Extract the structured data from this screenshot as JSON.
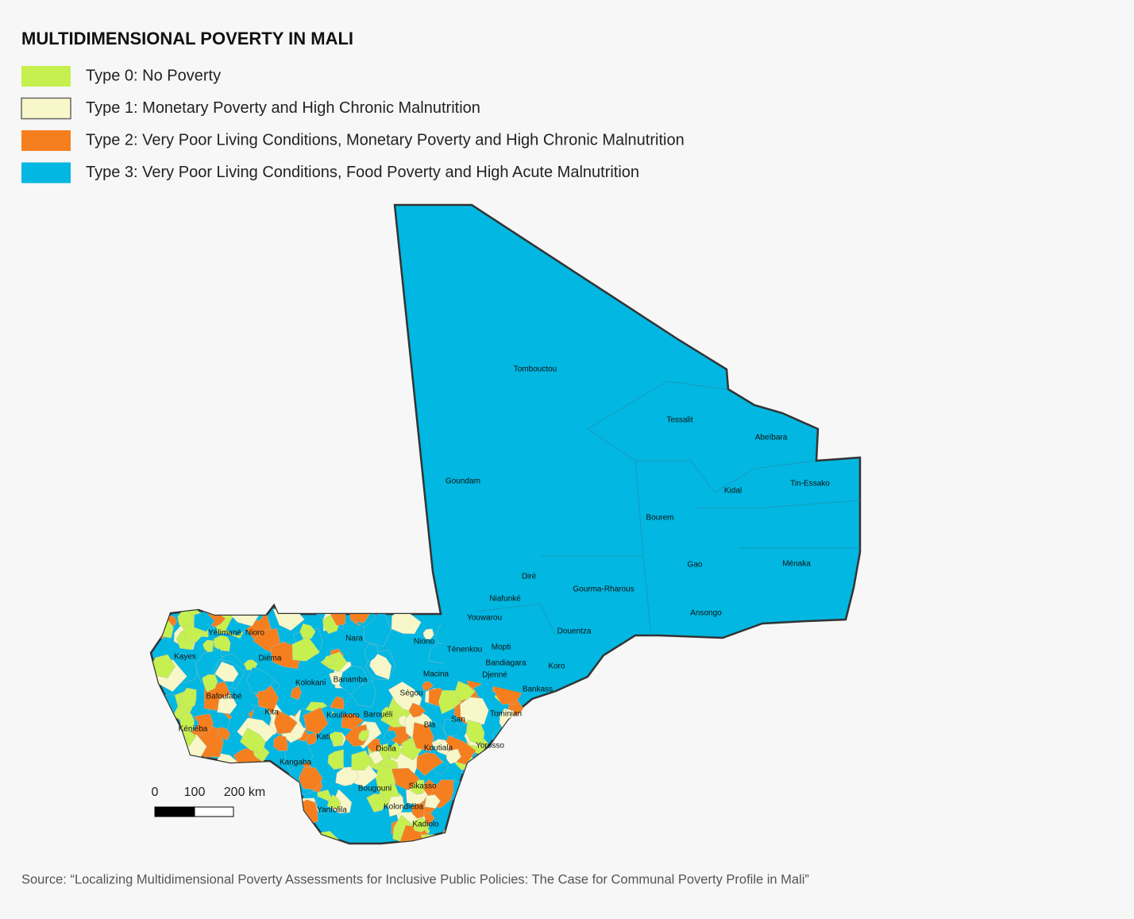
{
  "title": "MULTIDIMENSIONAL POVERTY IN MALI",
  "legend": {
    "items": [
      {
        "label": "Type 0: No Poverty",
        "color": "#c6f04f"
      },
      {
        "label": "Type 1: Monetary Poverty and High Chronic Malnutrition",
        "color": "#f7f7c9"
      },
      {
        "label": "Type 2: Very Poor Living Conditions, Monetary Poverty and High Chronic Malnutrition",
        "color": "#f57f1e"
      },
      {
        "label": "Type 3: Very Poor Living Conditions, Food Poverty and High Acute Malnutrition",
        "color": "#02b7e1"
      }
    ]
  },
  "map": {
    "places": [
      "Tombouctou",
      "Tessalit",
      "Abeïbara",
      "Goundam",
      "Tin-Essako",
      "Kidal",
      "Bourem",
      "Gao",
      "Ménaka",
      "Diré",
      "Gourma-Rharous",
      "Niafunké",
      "Ansongo",
      "Youwarou",
      "Douentza",
      "Nara",
      "Yélimané",
      "Nioro",
      "Niono",
      "Ténenkou",
      "Mopti",
      "Kayes",
      "Diéma",
      "Bandiagara",
      "Koro",
      "Macina",
      "Djenné",
      "Kolokani",
      "Banamba",
      "Ségou",
      "Bankass",
      "Bafoulabé",
      "Kita",
      "Koulikoro",
      "Barouéli",
      "Tominian",
      "San",
      "Bla",
      "Kéniéba",
      "Kati",
      "Yorosso",
      "Dioïla",
      "Koutiala",
      "Kangaba",
      "Bougouni",
      "Sikasso",
      "Yanfolila",
      "Kolondiéba",
      "Kadiolo"
    ]
  },
  "scale_bar": {
    "labels": [
      "0",
      "100",
      "200 km"
    ]
  },
  "source": "Source: “Localizing Multidimensional Poverty Assessments for Inclusive Public Policies: The Case for Communal Poverty Profile in Mali”"
}
